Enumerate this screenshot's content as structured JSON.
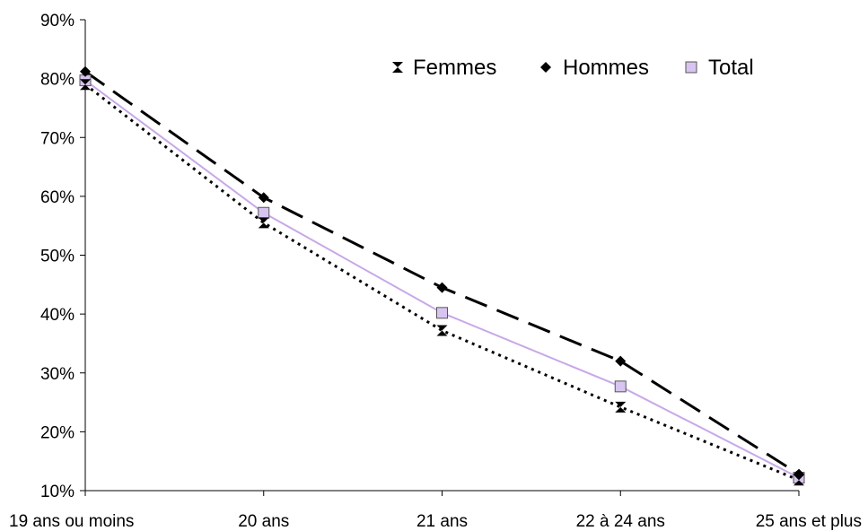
{
  "chart_data": {
    "type": "line",
    "title": "",
    "xlabel": "",
    "ylabel": "",
    "categories": [
      "19 ans ou moins",
      "20 ans",
      "21 ans",
      "22 à 24 ans",
      "25 ans et plus"
    ],
    "ylim": [
      0.1,
      0.9
    ],
    "yticks": [
      0.1,
      0.2,
      0.3,
      0.4,
      0.5,
      0.6,
      0.7,
      0.8,
      0.9
    ],
    "ytick_labels": [
      "10%",
      "20%",
      "30%",
      "40%",
      "50%",
      "60%",
      "70%",
      "80%",
      "90%"
    ],
    "grid": false,
    "legend_position": "top-right",
    "series": [
      {
        "name": "Femmes",
        "values": [
          0.79,
          0.555,
          0.372,
          0.242,
          0.118
        ],
        "color": "#000000",
        "line": "dotted",
        "marker": "hourglass"
      },
      {
        "name": "Hommes",
        "values": [
          0.812,
          0.598,
          0.445,
          0.32,
          0.128
        ],
        "color": "#000000",
        "line": "long-dash",
        "marker": "diamond"
      },
      {
        "name": "Total",
        "values": [
          0.797,
          0.572,
          0.402,
          0.277,
          0.122
        ],
        "color": "#c8a8e8",
        "line": "solid",
        "marker": "square"
      }
    ]
  }
}
